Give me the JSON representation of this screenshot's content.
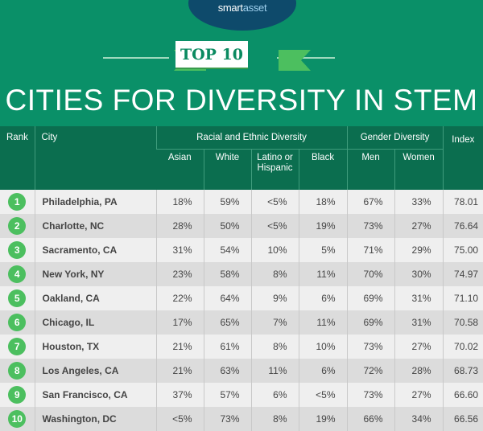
{
  "logo": {
    "part1": "smart",
    "part2": "asset"
  },
  "badge": "TOP 10",
  "title": "CITIES FOR DIVERSITY IN STEM",
  "colors": {
    "background": "#0a9068",
    "header": "#0b6e4f",
    "rank_circle": "#4cbf5f",
    "logo": "#0e4a6b"
  },
  "table": {
    "headers": {
      "rank": "Rank",
      "city": "City",
      "racial_group": "Racial and Ethnic Diversity",
      "gender_group": "Gender Diversity",
      "index": "Index",
      "sub": [
        "Asian",
        "White",
        "Latino or Hispanic",
        "Black",
        "Men",
        "Women"
      ]
    },
    "rows": [
      {
        "rank": "1",
        "city": "Philadelphia, PA",
        "cells": [
          "18%",
          "59%",
          "<5%",
          "18%",
          "67%",
          "33%",
          "78.01"
        ]
      },
      {
        "rank": "2",
        "city": "Charlotte, NC",
        "cells": [
          "28%",
          "50%",
          "<5%",
          "19%",
          "73%",
          "27%",
          "76.64"
        ]
      },
      {
        "rank": "3",
        "city": "Sacramento, CA",
        "cells": [
          "31%",
          "54%",
          "10%",
          "5%",
          "71%",
          "29%",
          "75.00"
        ]
      },
      {
        "rank": "4",
        "city": "New York, NY",
        "cells": [
          "23%",
          "58%",
          "8%",
          "11%",
          "70%",
          "30%",
          "74.97"
        ]
      },
      {
        "rank": "5",
        "city": "Oakland, CA",
        "cells": [
          "22%",
          "64%",
          "9%",
          "6%",
          "69%",
          "31%",
          "71.10"
        ]
      },
      {
        "rank": "6",
        "city": "Chicago, IL",
        "cells": [
          "17%",
          "65%",
          "7%",
          "11%",
          "69%",
          "31%",
          "70.58"
        ]
      },
      {
        "rank": "7",
        "city": "Houston, TX",
        "cells": [
          "21%",
          "61%",
          "8%",
          "10%",
          "73%",
          "27%",
          "70.02"
        ]
      },
      {
        "rank": "8",
        "city": "Los Angeles, CA",
        "cells": [
          "21%",
          "63%",
          "11%",
          "6%",
          "72%",
          "28%",
          "68.73"
        ]
      },
      {
        "rank": "9",
        "city": "San Francisco, CA",
        "cells": [
          "37%",
          "57%",
          "6%",
          "<5%",
          "73%",
          "27%",
          "66.60"
        ]
      },
      {
        "rank": "10",
        "city": "Washington, DC",
        "cells": [
          "<5%",
          "73%",
          "8%",
          "19%",
          "66%",
          "34%",
          "66.56"
        ]
      }
    ]
  }
}
